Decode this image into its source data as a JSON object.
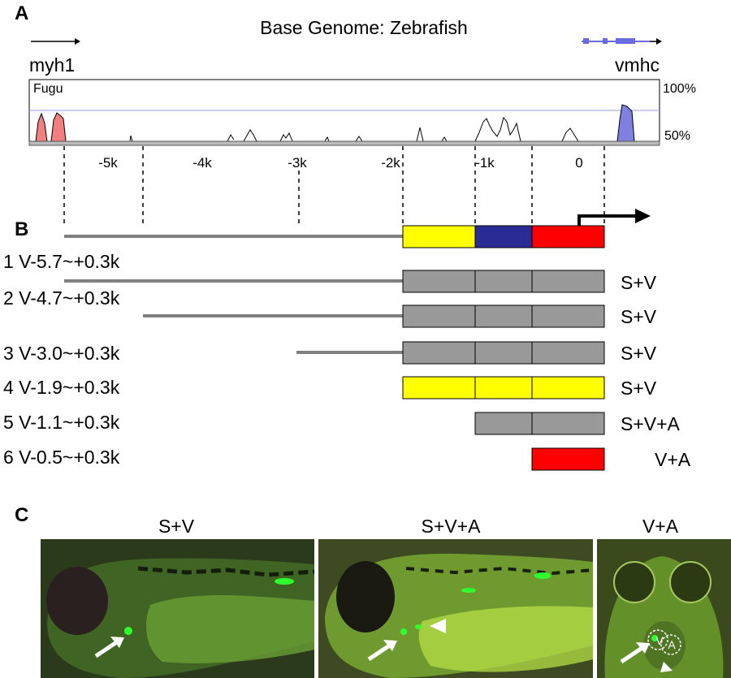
{
  "panel_a": {
    "label": "A",
    "title": "Base Genome: Zebrafish",
    "left_gene": "myh1",
    "right_gene": "vmhc",
    "track_species": "Fugu",
    "pct_high": "100%",
    "pct_low": "50%",
    "axis_ticks": [
      "-5k",
      "-4k",
      "-3k",
      "-2k",
      "-1k",
      "0"
    ],
    "colors": {
      "fugu_peak": "#f08080",
      "vmhc_peak": "#8080e0",
      "vmhc_exon": "#6b6be0",
      "ref_line": "#9999ee"
    }
  },
  "panel_b": {
    "label": "B",
    "segment_colors": {
      "distal": "#ffff00",
      "middle": "#2b2b96",
      "proximal": "#ff0000",
      "tested": "#999999",
      "line": "#808080"
    },
    "constructs": [
      {
        "name": "1 V-5.7~+0.3k",
        "expression": "S+V"
      },
      {
        "name": "2 V-4.7~+0.3k",
        "expression": "S+V"
      },
      {
        "name": "3 V-3.0~+0.3k",
        "expression": "S+V"
      },
      {
        "name": "4 V-1.9~+0.3k",
        "expression": "S+V"
      },
      {
        "name": "5 V-1.1~+0.3k",
        "expression": "S+V+A"
      },
      {
        "name": "6 V-0.5~+0.3k",
        "expression": "V+A"
      }
    ]
  },
  "panel_c": {
    "label": "C",
    "images": [
      {
        "title": "S+V"
      },
      {
        "title": "S+V+A"
      },
      {
        "title": "V+A",
        "chamber_v": "V",
        "chamber_a": "A"
      }
    ]
  }
}
